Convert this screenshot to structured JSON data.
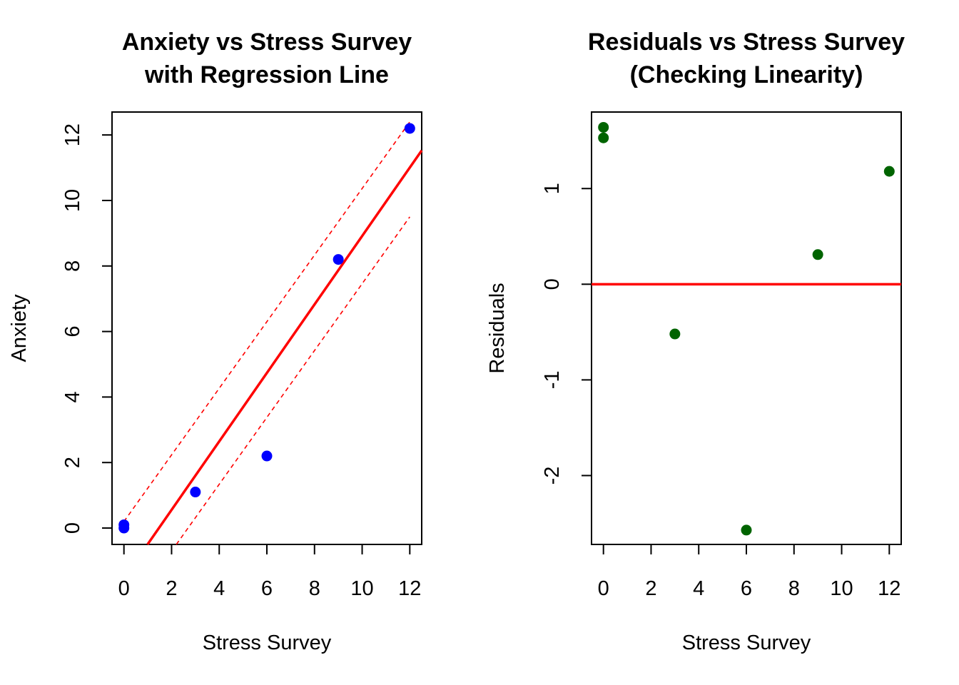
{
  "chart_data": [
    {
      "type": "scatter",
      "title": [
        "Anxiety vs Stress Survey",
        "with Regression Line"
      ],
      "xlabel": "Stress Survey",
      "ylabel": "Anxiety",
      "xlim": [
        -0.5,
        12.5
      ],
      "ylim": [
        -0.5,
        12.7
      ],
      "xticks": [
        0,
        2,
        4,
        6,
        8,
        10,
        12
      ],
      "yticks": [
        0,
        2,
        4,
        6,
        8,
        10,
        12
      ],
      "point_color": "#0000ff",
      "points": [
        {
          "x": 0,
          "y": 0.1
        },
        {
          "x": 0,
          "y": 0.0
        },
        {
          "x": 3,
          "y": 1.1
        },
        {
          "x": 6,
          "y": 2.2
        },
        {
          "x": 9,
          "y": 8.2
        },
        {
          "x": 12,
          "y": 12.2
        }
      ],
      "regression": {
        "intercept": -1.535,
        "slope": 1.045,
        "color": "#ff0000"
      },
      "confidence_band": {
        "color": "#ff0000",
        "upper": [
          {
            "x": 0,
            "y": 0.2
          },
          {
            "x": 12,
            "y": 12.4
          }
        ],
        "lower": [
          {
            "x": 2.2,
            "y": -0.5
          },
          {
            "x": 12,
            "y": 9.5
          }
        ]
      }
    },
    {
      "type": "scatter",
      "title": [
        "Residuals vs Stress Survey",
        "(Checking Linearity)"
      ],
      "xlabel": "Stress Survey",
      "ylabel": "Residuals",
      "xlim": [
        -0.5,
        12.5
      ],
      "ylim": [
        -2.72,
        1.8
      ],
      "xticks": [
        0,
        2,
        4,
        6,
        8,
        10,
        12
      ],
      "yticks": [
        -2,
        -1,
        0,
        1
      ],
      "point_color": "#006400",
      "points": [
        {
          "x": 0,
          "y": 1.64
        },
        {
          "x": 0,
          "y": 1.53
        },
        {
          "x": 3,
          "y": -0.52
        },
        {
          "x": 6,
          "y": -2.57
        },
        {
          "x": 9,
          "y": 0.31
        },
        {
          "x": 12,
          "y": 1.18
        }
      ],
      "hline": {
        "y": 0,
        "color": "#ff0000"
      }
    }
  ]
}
